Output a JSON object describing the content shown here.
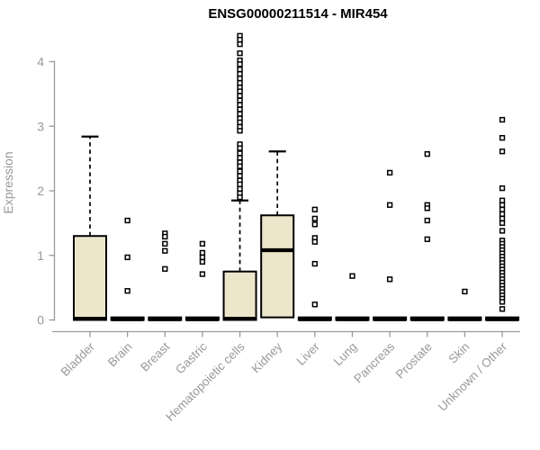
{
  "chart_data": {
    "type": "boxplot",
    "title": "ENSG00000211514 - MIR454",
    "xlabel": "",
    "ylabel": "Expression",
    "ylim": [
      0,
      4.45
    ],
    "yticks": [
      0,
      1,
      2,
      3,
      4
    ],
    "grid": false,
    "legend": "none",
    "colors": {
      "box_fill": "#ece7cb",
      "box_border": "#000000",
      "median": "#000000",
      "whisker": "#000000",
      "outlier": "#000000",
      "axis": "#999999",
      "tick_label": "#999999",
      "title": "#000000"
    },
    "categories": [
      "Bladder",
      "Brain",
      "Breast",
      "Gastric",
      "Hematopoietic cells",
      "Kidney",
      "Liver",
      "Lung",
      "Pancreas",
      "Prostate",
      "Skin",
      "Unknown / Other"
    ],
    "series": [
      {
        "category": "Bladder",
        "q1": 0,
        "median": 0.02,
        "q3": 1.3,
        "whisker_low": 0,
        "whisker_high": 2.84,
        "outliers": []
      },
      {
        "category": "Brain",
        "q1": 0,
        "median": 0.01,
        "q3": 0.04,
        "whisker_low": 0,
        "whisker_high": 0.04,
        "outliers": [
          1.54,
          0.97,
          0.45
        ]
      },
      {
        "category": "Breast",
        "q1": 0,
        "median": 0.01,
        "q3": 0.04,
        "whisker_low": 0,
        "whisker_high": 0.04,
        "outliers": [
          1.34,
          1.29,
          1.18,
          1.07,
          0.79
        ]
      },
      {
        "category": "Gastric",
        "q1": 0,
        "median": 0.01,
        "q3": 0.04,
        "whisker_low": 0,
        "whisker_high": 0.04,
        "outliers": [
          1.18,
          1.04,
          0.97,
          0.9,
          0.71
        ]
      },
      {
        "category": "Hematopoietic cells",
        "q1": 0,
        "median": 0.02,
        "q3": 0.75,
        "whisker_low": 0,
        "whisker_high": 1.85,
        "outliers": [
          4.4,
          4.34,
          4.27,
          4.13,
          4.02,
          3.96,
          3.88,
          3.81,
          3.74,
          3.67,
          3.6,
          3.54,
          3.47,
          3.4,
          3.33,
          3.26,
          3.19,
          3.12,
          3.06,
          2.99,
          2.93,
          2.72,
          2.66,
          2.58,
          2.51,
          2.44,
          2.38,
          2.3,
          2.23,
          2.16,
          2.1,
          2.03,
          1.96,
          1.9
        ]
      },
      {
        "category": "Kidney",
        "q1": 0.04,
        "median": 1.08,
        "q3": 1.62,
        "whisker_low": 0.04,
        "whisker_high": 2.61,
        "outliers": []
      },
      {
        "category": "Liver",
        "q1": 0,
        "median": 0.01,
        "q3": 0.04,
        "whisker_low": 0,
        "whisker_high": 0.04,
        "outliers": [
          1.71,
          1.57,
          1.48,
          1.27,
          1.21,
          0.87,
          0.24
        ]
      },
      {
        "category": "Lung",
        "q1": 0,
        "median": 0.01,
        "q3": 0.04,
        "whisker_low": 0,
        "whisker_high": 0.04,
        "outliers": [
          0.68
        ]
      },
      {
        "category": "Pancreas",
        "q1": 0,
        "median": 0.01,
        "q3": 0.04,
        "whisker_low": 0,
        "whisker_high": 0.04,
        "outliers": [
          2.28,
          1.78,
          0.63
        ]
      },
      {
        "category": "Prostate",
        "q1": 0,
        "median": 0.01,
        "q3": 0.04,
        "whisker_low": 0,
        "whisker_high": 0.04,
        "outliers": [
          2.57,
          1.78,
          1.73,
          1.54,
          1.25
        ]
      },
      {
        "category": "Skin",
        "q1": 0,
        "median": 0.01,
        "q3": 0.04,
        "whisker_low": 0,
        "whisker_high": 0.04,
        "outliers": [
          0.44
        ]
      },
      {
        "category": "Unknown / Other",
        "q1": 0,
        "median": 0.01,
        "q3": 0.04,
        "whisker_low": 0,
        "whisker_high": 0.04,
        "outliers": [
          3.1,
          2.82,
          2.61,
          2.04,
          1.85,
          1.78,
          1.71,
          1.64,
          1.57,
          1.5,
          1.38,
          1.23,
          1.18,
          1.13,
          1.08,
          1.03,
          0.98,
          0.93,
          0.88,
          0.83,
          0.78,
          0.73,
          0.68,
          0.63,
          0.58,
          0.53,
          0.48,
          0.43,
          0.38,
          0.33,
          0.28,
          0.17
        ]
      }
    ]
  }
}
